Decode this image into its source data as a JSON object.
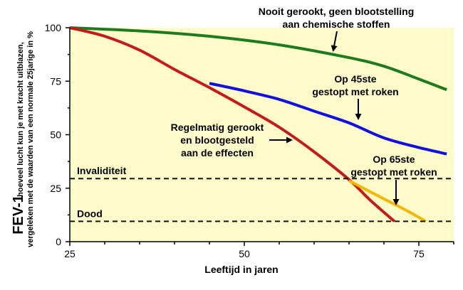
{
  "chart_data": {
    "type": "line",
    "xlabel": "Leeftijd in jaren",
    "ylabel_main": "FEV-1",
    "ylabel_sub_line1": "hoeveel lucht kun je met kracht uitblazen,",
    "ylabel_sub_line2": "vergeleken met de waarden van een normale 25jarige in %",
    "xlim": [
      25,
      80
    ],
    "ylim": [
      0,
      100
    ],
    "x_ticks": [
      25,
      50,
      75
    ],
    "y_ticks": [
      0,
      25,
      50,
      75,
      100
    ],
    "background": "#fdfbc9",
    "series": [
      {
        "key": "never",
        "color": "#1e7a1e",
        "points": [
          [
            25,
            100
          ],
          [
            35,
            98.5
          ],
          [
            45,
            96
          ],
          [
            55,
            92
          ],
          [
            65,
            86
          ],
          [
            70,
            82
          ],
          [
            75,
            76
          ],
          [
            79,
            71
          ]
        ]
      },
      {
        "key": "quit45",
        "color": "#1010e0",
        "points": [
          [
            45,
            74
          ],
          [
            50,
            70.5
          ],
          [
            55,
            66.5
          ],
          [
            60,
            61
          ],
          [
            65,
            55.5
          ],
          [
            70,
            48.5
          ],
          [
            75,
            44
          ],
          [
            79,
            41
          ]
        ]
      },
      {
        "key": "smoker",
        "color": "#c61a1a",
        "points": [
          [
            25,
            100
          ],
          [
            30,
            96
          ],
          [
            35,
            89.5
          ],
          [
            40,
            80.5
          ],
          [
            45,
            72
          ],
          [
            50,
            63
          ],
          [
            55,
            53.5
          ],
          [
            60,
            42
          ],
          [
            65,
            29
          ],
          [
            68,
            19.5
          ],
          [
            71.5,
            9.5
          ]
        ]
      },
      {
        "key": "quit65",
        "color": "#f5b800",
        "points": [
          [
            65,
            28.5
          ],
          [
            70,
            20
          ],
          [
            73,
            15
          ],
          [
            76,
            9.5
          ]
        ]
      }
    ],
    "thresholds": [
      {
        "label": "Invaliditeit",
        "y": 29.5
      },
      {
        "label": "Dood",
        "y": 9.5
      }
    ],
    "annotations": {
      "never_line1": "Nooit gerookt, geen blootstelling",
      "never_line2": "aan chemische stoffen",
      "quit45_line1": "Op 45ste",
      "quit45_line2": "gestopt met roken",
      "smoker_line1": "Regelmatig gerookt",
      "smoker_line2": "en blootgesteld",
      "smoker_line3": "aan de effecten",
      "quit65_line1": "Op 65ste",
      "quit65_line2": "gestopt met roken"
    }
  }
}
